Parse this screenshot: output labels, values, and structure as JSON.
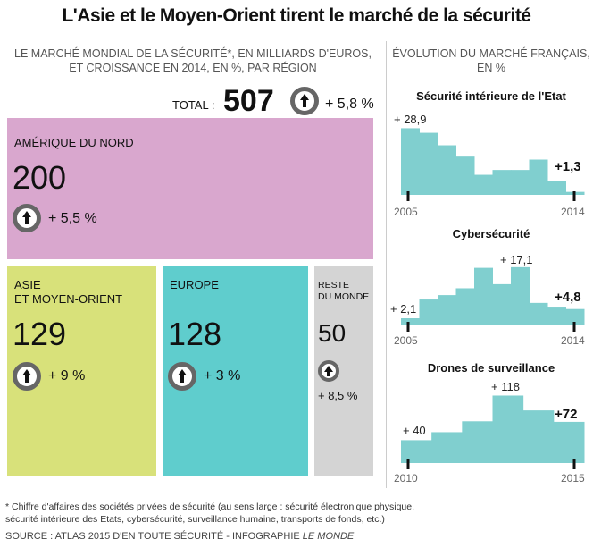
{
  "title": "L'Asie et le Moyen-Orient tirent le marché de la sécurité",
  "left_subtitle": [
    "LE MARCHÉ MONDIAL DE LA SÉCURITÉ*, EN MILLIARDS D'EUROS,",
    "ET CROISSANCE EN 2014, EN %, PAR RÉGION"
  ],
  "right_subtitle": [
    "ÉVOLUTION DU MARCHÉ FRANÇAIS,",
    "EN %"
  ],
  "total": {
    "label": "TOTAL :",
    "value": "507",
    "growth": "+ 5,8 %",
    "icon": "up-arrow-icon"
  },
  "colors": {
    "amerique": "#d9a7ce",
    "asie": "#d8e17a",
    "europe": "#5fcdcd",
    "reste": "#d4d4d4",
    "bars": "#80cfcf"
  },
  "chart_data": [
    {
      "type": "treemap",
      "categories": [
        "AMÉRIQUE DU NORD",
        "ASIE ET MOYEN-ORIENT",
        "EUROPE",
        "RESTE DU MONDE"
      ],
      "values": [
        200,
        129,
        128,
        50
      ],
      "growth_labels": [
        "+ 5,5 %",
        "+ 9 %",
        "+ 3 %",
        "+ 8,5 %"
      ],
      "region_lines": [
        [
          "AMÉRIQUE DU NORD"
        ],
        [
          "ASIE",
          "ET MOYEN-ORIENT"
        ],
        [
          "EUROPE"
        ],
        [
          "RESTE",
          "DU MONDE"
        ]
      ],
      "value_labels": [
        "200",
        "129",
        "128",
        "50"
      ]
    },
    {
      "type": "bar",
      "title": "Sécurité intérieure de l'Etat",
      "x": [
        2005,
        2006,
        2007,
        2008,
        2009,
        2010,
        2011,
        2012,
        2013,
        2014
      ],
      "values": [
        28.9,
        26.9,
        21.5,
        16.6,
        8.7,
        10.8,
        10.8,
        15.3,
        6.1,
        1.3
      ],
      "ylim": [
        0,
        31
      ],
      "tick_labels": [
        "2005",
        "2014"
      ],
      "annotations": {
        "start": "+ 28,9",
        "end": "+1,3"
      }
    },
    {
      "type": "bar",
      "title": "Cybersécurité",
      "x": [
        2005,
        2006,
        2007,
        2008,
        2009,
        2010,
        2011,
        2012,
        2013,
        2014
      ],
      "values": [
        2.1,
        7.6,
        8.9,
        10.9,
        16.9,
        12.1,
        17.1,
        6.6,
        5.5,
        4.8
      ],
      "ylim": [
        0,
        21
      ],
      "tick_labels": [
        "2005",
        "2014"
      ],
      "annotations": {
        "start": "+ 2,1",
        "peak": "+ 17,1",
        "end": "+4,8"
      }
    },
    {
      "type": "bar",
      "title": "Drones de surveillance",
      "x": [
        2010,
        2011,
        2012,
        2013,
        2014,
        2015
      ],
      "values": [
        40,
        54,
        73,
        118,
        92,
        72
      ],
      "ylim": [
        0,
        125
      ],
      "tick_labels": [
        "2010",
        "2015"
      ],
      "annotations": {
        "start": "+ 40",
        "peak": "+ 118",
        "end": "+72"
      }
    }
  ],
  "footnote": [
    "* Chiffre d'affaires des sociétés privées de sécurité (au sens large : sécurité électronique physique,",
    "sécurité intérieure des Etats, cybersécurité, surveillance humaine, transports de fonds, etc.)"
  ],
  "source": {
    "text": "SOURCE : ATLAS 2015 D'EN TOUTE SÉCURITÉ - INFOGRAPHIE ",
    "brand": "LE MONDE"
  }
}
